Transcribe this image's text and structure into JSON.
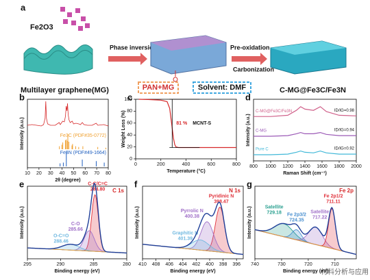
{
  "schematic": {
    "letter": "a",
    "precursor": "Fe2O3",
    "step1": "Phase inversion",
    "step2": "Pre-oxidation",
    "step3": "Carbonization",
    "start": "Multilayer graphene(MG)",
    "additive": "PAN+MG",
    "solvent": "Solvent: DMF",
    "product": "C-MG@Fe3C/Fe3N"
  },
  "watermark": "材料分析与应用",
  "chart_data": [
    {
      "type": "xrd",
      "panel": "b",
      "xlabel": "2θ (degree)",
      "ylabel": "Intensity (a.u.)",
      "xlim": [
        10,
        80
      ],
      "xticks": [
        10,
        20,
        30,
        40,
        50,
        60,
        70,
        80
      ],
      "ylim": [
        0,
        100
      ],
      "series": [
        {
          "color": "#d62728",
          "style": "line",
          "x": [
            10,
            14,
            18,
            22,
            24,
            25.3,
            25.9,
            26.5,
            27.5,
            30,
            34,
            37.5,
            38.5,
            40.5,
            42,
            42.9,
            43.6,
            44.2,
            44.7,
            45.3,
            46,
            47,
            48.8,
            50,
            52,
            54.5,
            56,
            57.5,
            59,
            62,
            66,
            69.5,
            71,
            76,
            78,
            80
          ],
          "values": [
            62,
            63,
            62,
            61,
            63,
            72,
            97,
            72,
            64,
            62,
            62,
            66,
            63,
            68,
            67,
            75,
            90,
            83,
            94,
            78,
            70,
            66,
            68,
            64,
            65,
            64,
            63,
            66,
            63,
            62,
            62,
            65,
            62,
            63,
            62,
            61
          ]
        },
        {
          "name": "Fe3C (PDF#35-0772)",
          "color": "#f0a030",
          "style": "stick",
          "x": [
            37.7,
            39.8,
            40.6,
            42.9,
            43.7,
            44.6,
            45.0,
            45.9,
            48.6,
            49.1,
            51.8,
            54.4,
            58.0,
            70.9,
            77.9
          ],
          "values": [
            20,
            30,
            45,
            60,
            65,
            55,
            100,
            50,
            25,
            35,
            20,
            15,
            20,
            15,
            10
          ]
        },
        {
          "name": "Fe3N (PDF#49-1664)",
          "color": "#1f5fbf",
          "style": "stick",
          "x": [
            38.3,
            41.1,
            43.7,
            57.5,
            69.6,
            76.5
          ],
          "values": [
            20,
            25,
            100,
            45,
            35,
            25
          ]
        }
      ]
    },
    {
      "type": "line",
      "panel": "c",
      "xlabel": "Temperature (°C)",
      "ylabel": "Weight Loss (%)",
      "xlim": [
        0,
        800
      ],
      "xticks": [
        0,
        200,
        400,
        600,
        800
      ],
      "ylim": [
        0,
        100
      ],
      "yticks": [
        0,
        20,
        40,
        60,
        80,
        100
      ],
      "annotations": [
        "81 %",
        "MCNT-S"
      ],
      "series": [
        {
          "color": "#d62728",
          "x": [
            25,
            100,
            200,
            250,
            270,
            285,
            300,
            310,
            320,
            340,
            400,
            500,
            600,
            700,
            800
          ],
          "values": [
            100,
            99.5,
            98.5,
            96,
            85,
            60,
            35,
            24,
            20,
            19,
            19,
            19,
            19,
            19,
            19
          ]
        }
      ]
    },
    {
      "type": "line",
      "panel": "d",
      "xlabel": "Raman Shift (cm⁻¹)",
      "ylabel": "Intensity (a.u.)",
      "xlim": [
        800,
        2000
      ],
      "xticks": [
        800,
        1000,
        1200,
        1400,
        1600,
        1800,
        2000
      ],
      "ylim": [
        0,
        100
      ],
      "series": [
        {
          "name": "C-MG@Fe3C/Fe3N",
          "note": "ID/IG=0.98",
          "color": "#d0608a",
          "x": [
            800,
            1000,
            1200,
            1300,
            1350,
            1400,
            1500,
            1580,
            1650,
            1800,
            2000
          ],
          "values": [
            72,
            72,
            74,
            82,
            88,
            84,
            82,
            88,
            80,
            74,
            73
          ]
        },
        {
          "name": "C-MG",
          "note": "ID/IG=0.94",
          "color": "#9b59b6",
          "x": [
            800,
            1000,
            1200,
            1300,
            1350,
            1400,
            1500,
            1580,
            1650,
            1800,
            2000
          ],
          "values": [
            40,
            40,
            41,
            44,
            46,
            44,
            44,
            46,
            43,
            41,
            41
          ]
        },
        {
          "name": "Pure C",
          "note": "ID/IG=0.92",
          "color": "#40b8d8",
          "x": [
            800,
            1000,
            1200,
            1300,
            1350,
            1400,
            1500,
            1580,
            1650,
            1800,
            2000
          ],
          "values": [
            10,
            10,
            11,
            14,
            16,
            14,
            13,
            16,
            13,
            11,
            11
          ]
        }
      ]
    },
    {
      "type": "xps",
      "panel": "e",
      "tag": "C 1s",
      "xlabel": "Binding energy (eV)",
      "ylabel": "Intensity (a.u.)",
      "xlim": [
        295,
        280
      ],
      "xticks": [
        295,
        290,
        285,
        280
      ],
      "ylim": [
        0,
        100
      ],
      "background": [
        15,
        8
      ],
      "peaks": [
        {
          "name": "C-C/C=C",
          "center": {
            "value": 284.8,
            "label": "284.80"
          },
          "height": 78,
          "fwhm": 1.2,
          "color": "#e0303a"
        },
        {
          "name": "C-O",
          "center": {
            "value": 285.66,
            "label": "285.66"
          },
          "height": 28,
          "fwhm": 1.8,
          "color": "#a070c8"
        },
        {
          "name": "O-C=O",
          "center": {
            "value": 288.46,
            "label": "288.46"
          },
          "height": 8,
          "fwhm": 3,
          "color": "#70b8e0"
        }
      ]
    },
    {
      "type": "xps",
      "panel": "f",
      "tag": "N 1s",
      "xlabel": "Binding energy (eV)",
      "ylabel": "Intensity (a.u.)",
      "xlim": [
        410,
        395
      ],
      "xticks": [
        410,
        408,
        406,
        404,
        402,
        400,
        398,
        396
      ],
      "ylim": [
        0,
        100
      ],
      "background": [
        20,
        6
      ],
      "peaks": [
        {
          "name": "Pyridinic N",
          "center": {
            "value": 398.47,
            "label": "398.47"
          },
          "height": 62,
          "fwhm": 1.6,
          "color": "#e0303a"
        },
        {
          "name": "Pyrrolic N",
          "center": {
            "value": 400.38,
            "label": "400.38"
          },
          "height": 40,
          "fwhm": 2.2,
          "color": "#a070c8"
        },
        {
          "name": "Graphitic N",
          "center": {
            "value": 401.39,
            "label": "401.39"
          },
          "height": 14,
          "fwhm": 3,
          "color": "#70b8e0"
        }
      ]
    },
    {
      "type": "xps",
      "panel": "g",
      "tag": "Fe 2p",
      "xlabel": "Binding energy (eV)",
      "ylabel": "Intensity (a.u.)",
      "xlim": [
        740,
        702
      ],
      "xticks": [
        740,
        730,
        720,
        710
      ],
      "ylim": [
        0,
        100
      ],
      "background": [
        40,
        6
      ],
      "peaks": [
        {
          "name": "Satellite",
          "center": {
            "value": 729.18,
            "label": "729.18"
          },
          "height": 18,
          "fwhm": 8,
          "color": "#2aa090"
        },
        {
          "name": "Fe 2p3/2",
          "center": {
            "value": 724.35,
            "label": "724.35"
          },
          "height": 14,
          "fwhm": 4,
          "color": "#4a90d0"
        },
        {
          "name": "Satellite",
          "center": {
            "value": 717.22,
            "label": "717.22"
          },
          "height": 24,
          "fwhm": 6,
          "color": "#a070c8"
        },
        {
          "name": "Fe 2p1/2",
          "center": {
            "value": 711.11,
            "label": "711.11"
          },
          "height": 55,
          "fwhm": 3,
          "color": "#e0303a"
        }
      ]
    }
  ]
}
